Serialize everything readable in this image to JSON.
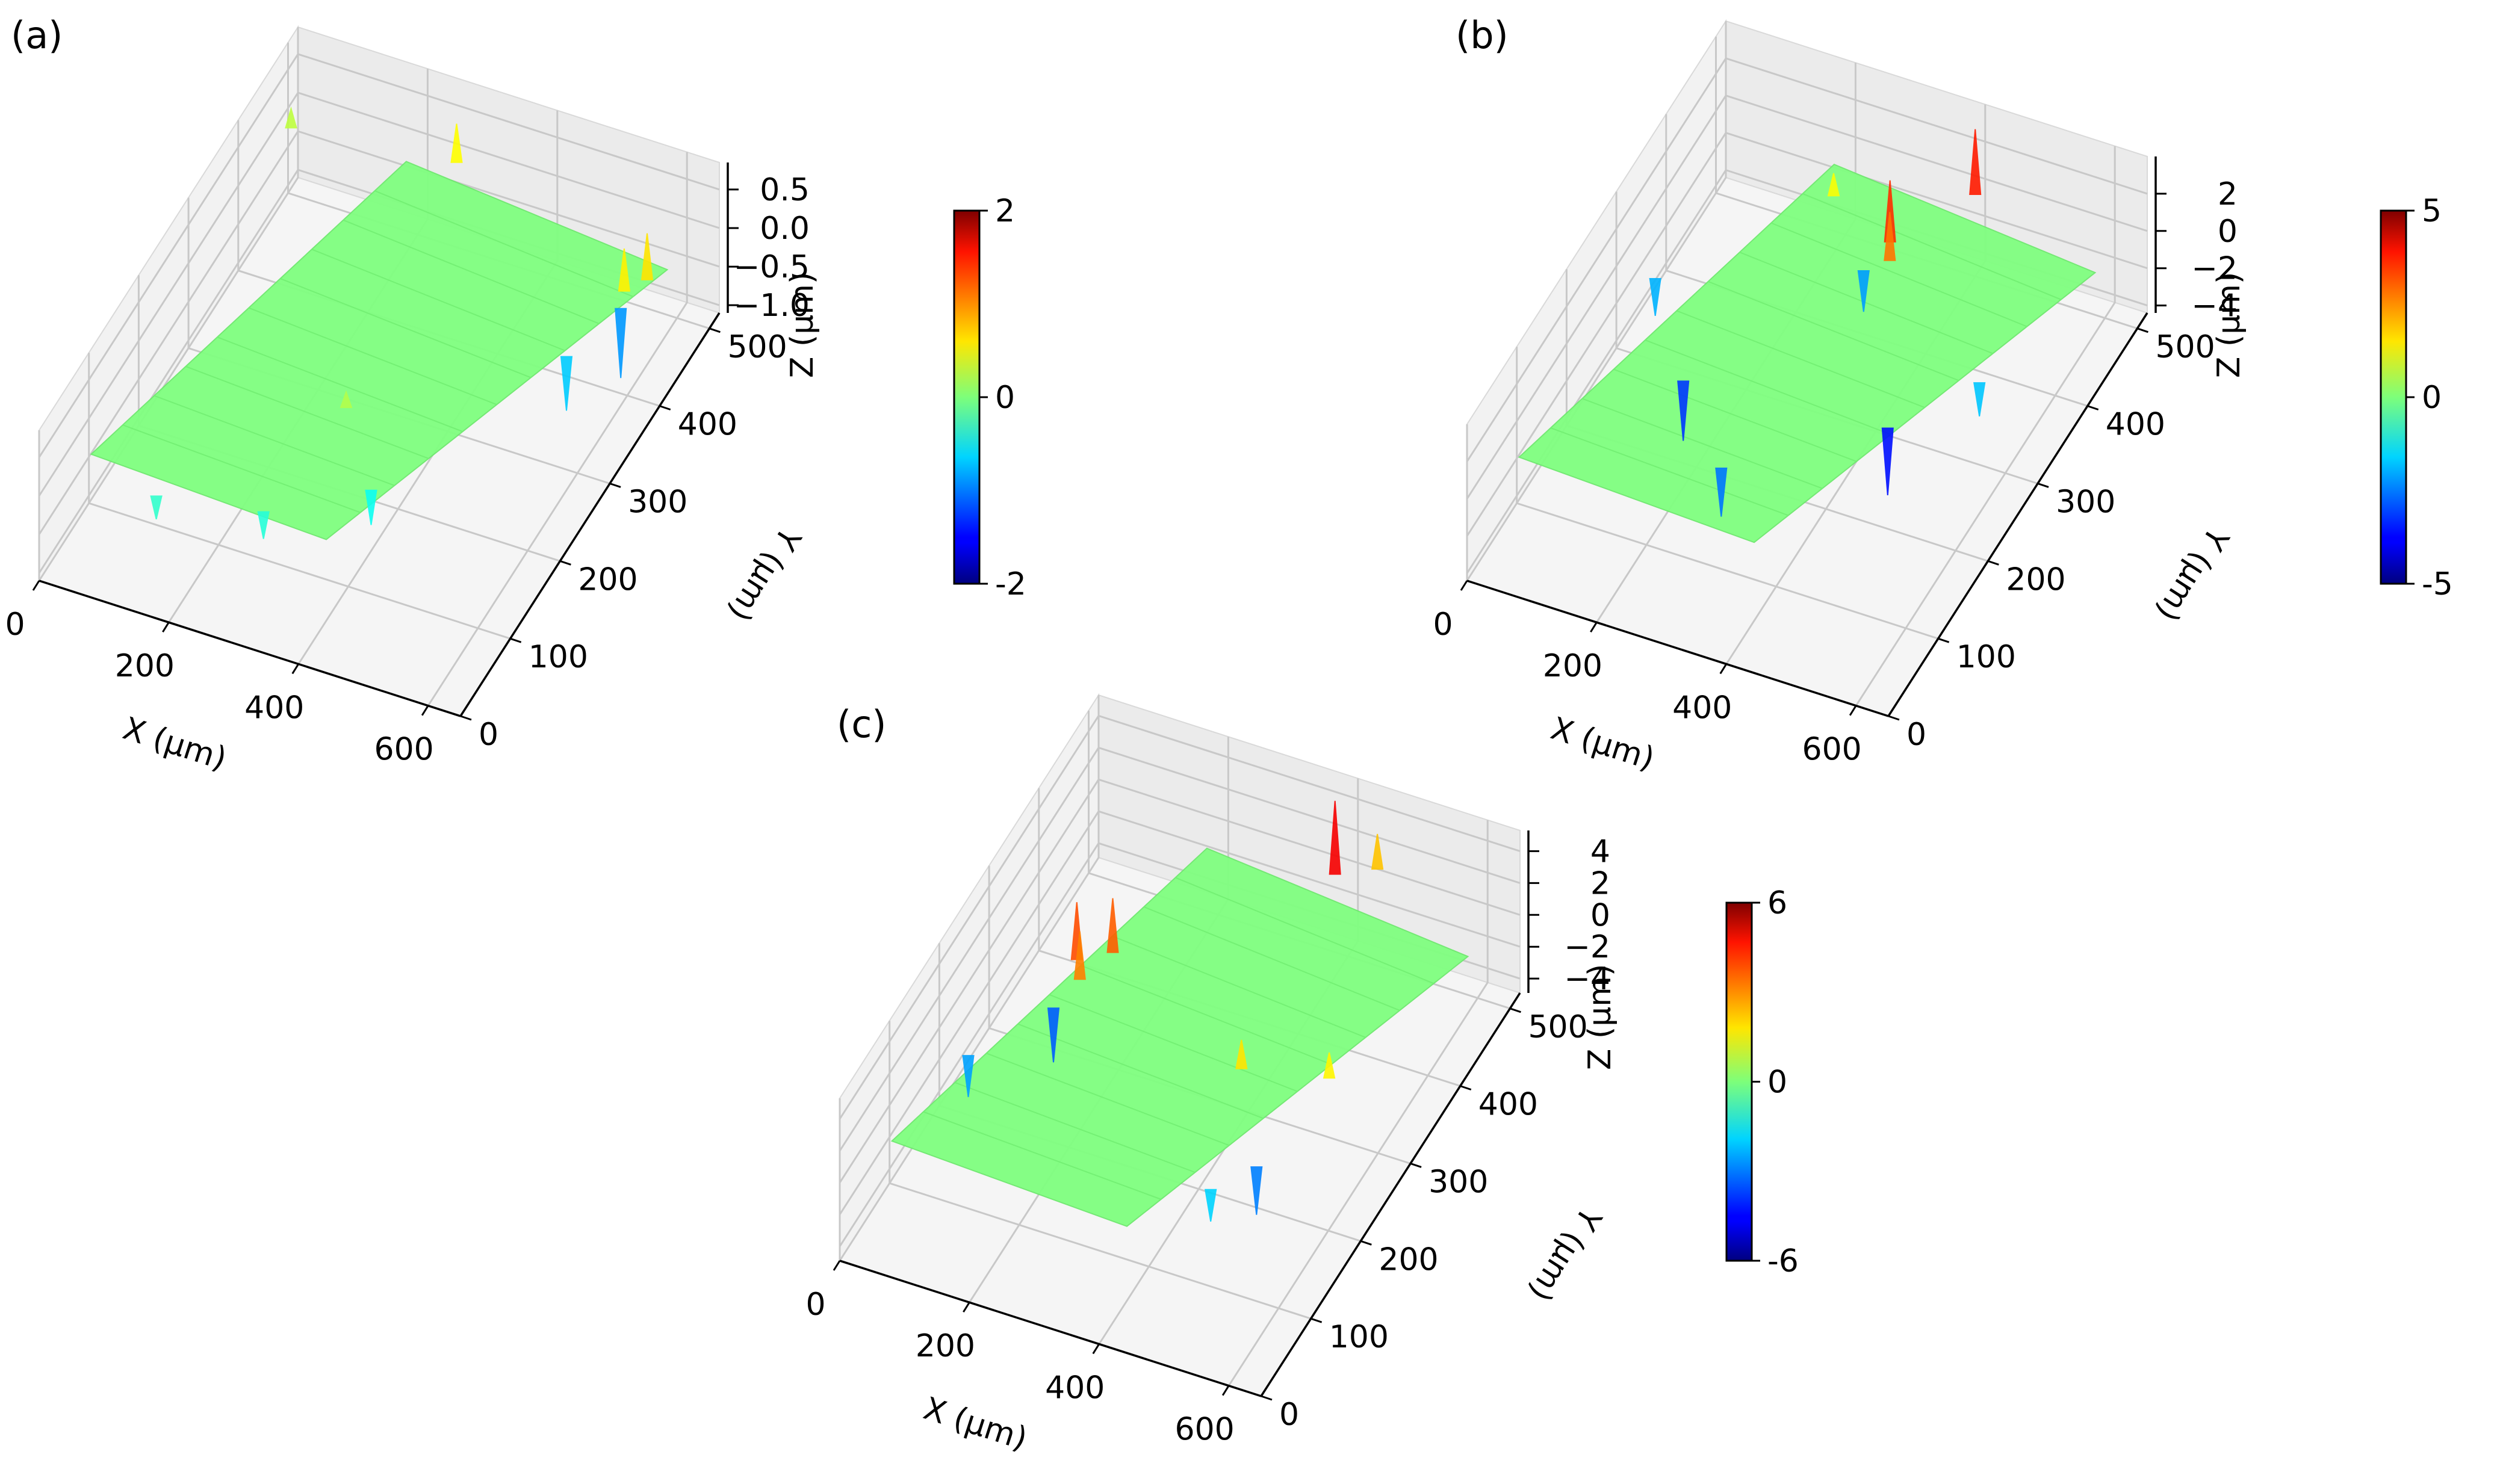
{
  "chart_data": [
    {
      "type": "surface3d",
      "panel_label": "(a)",
      "xlabel": "X (μm)",
      "ylabel": "Y (μm)",
      "zlabel": "Z (μm)",
      "x_ticks": [
        "0",
        "200",
        "400",
        "600"
      ],
      "y_ticks": [
        "0",
        "100",
        "200",
        "300",
        "400",
        "500"
      ],
      "z_ticks": [
        "−1.0",
        "−0.5",
        "0.0",
        "0.5"
      ],
      "xlim": [
        0,
        650
      ],
      "ylim": [
        0,
        520
      ],
      "zlim": [
        -1.1,
        0.85
      ],
      "colorbar": {
        "min": -2,
        "max": 2,
        "ticks": [
          "2",
          "0",
          "-2"
        ]
      },
      "surface": {
        "base_z": 0.0,
        "color": "#80ff80"
      },
      "spikes": [
        {
          "x": 580,
          "y": 420,
          "z": 0.55
        },
        {
          "x": 600,
          "y": 440,
          "z": 0.6
        },
        {
          "x": 590,
          "y": 400,
          "z": -0.9
        },
        {
          "x": 560,
          "y": 330,
          "z": -0.7
        },
        {
          "x": 260,
          "y": 500,
          "z": 0.5
        },
        {
          "x": 20,
          "y": 480,
          "z": 0.25
        },
        {
          "x": 150,
          "y": 40,
          "z": -0.3
        },
        {
          "x": 300,
          "y": 60,
          "z": -0.35
        },
        {
          "x": 420,
          "y": 120,
          "z": -0.45
        },
        {
          "x": 320,
          "y": 200,
          "z": 0.2
        }
      ]
    },
    {
      "type": "surface3d",
      "panel_label": "(b)",
      "xlabel": "X (μm)",
      "ylabel": "Y (μm)",
      "zlabel": "Z (μm)",
      "x_ticks": [
        "0",
        "200",
        "400",
        "600"
      ],
      "y_ticks": [
        "0",
        "100",
        "200",
        "300",
        "400",
        "500"
      ],
      "z_ticks": [
        "−4",
        "−2",
        "0",
        "2"
      ],
      "xlim": [
        0,
        650
      ],
      "ylim": [
        0,
        520
      ],
      "zlim": [
        -4.4,
        4.0
      ],
      "colorbar": {
        "min": -5,
        "max": 5,
        "ticks": [
          "5",
          "0",
          "-5"
        ]
      },
      "surface": {
        "base_z": 0.0,
        "color": "#80ff80"
      },
      "spikes": [
        {
          "x": 330,
          "y": 420,
          "z": 3.3
        },
        {
          "x": 345,
          "y": 400,
          "z": 2.6
        },
        {
          "x": 320,
          "y": 380,
          "z": -2.2
        },
        {
          "x": 400,
          "y": 500,
          "z": 3.5
        },
        {
          "x": 180,
          "y": 200,
          "z": -3.2
        },
        {
          "x": 480,
          "y": 220,
          "z": -3.6
        },
        {
          "x": 300,
          "y": 120,
          "z": -2.6
        },
        {
          "x": 560,
          "y": 300,
          "z": -1.8
        },
        {
          "x": 60,
          "y": 300,
          "z": -2.0
        },
        {
          "x": 220,
          "y": 450,
          "z": 1.2
        }
      ]
    },
    {
      "type": "surface3d",
      "panel_label": "(c)",
      "xlabel": "X (μm)",
      "ylabel": "Y (μm)",
      "zlabel": "Z (μm)",
      "x_ticks": [
        "0",
        "200",
        "400",
        "600"
      ],
      "y_ticks": [
        "0",
        "100",
        "200",
        "300",
        "400",
        "500"
      ],
      "z_ticks": [
        "−4",
        "−2",
        "0",
        "2",
        "4"
      ],
      "xlim": [
        0,
        650
      ],
      "ylim": [
        0,
        520
      ],
      "zlim": [
        -4.9,
        5.3
      ],
      "colorbar": {
        "min": -6,
        "max": 6,
        "ticks": [
          "6",
          "0",
          "-6"
        ]
      },
      "surface": {
        "base_z": 0.0,
        "color": "#80ff80"
      },
      "spikes": [
        {
          "x": 120,
          "y": 320,
          "z": 3.6
        },
        {
          "x": 140,
          "y": 300,
          "z": 3.0
        },
        {
          "x": 160,
          "y": 340,
          "z": 3.4
        },
        {
          "x": 130,
          "y": 260,
          "z": -3.4
        },
        {
          "x": 380,
          "y": 500,
          "z": 4.6
        },
        {
          "x": 430,
          "y": 520,
          "z": 2.2
        },
        {
          "x": 420,
          "y": 260,
          "z": 1.8
        },
        {
          "x": 520,
          "y": 160,
          "z": -3.0
        },
        {
          "x": 540,
          "y": 280,
          "z": 1.6
        },
        {
          "x": 480,
          "y": 120,
          "z": -2.0
        },
        {
          "x": 60,
          "y": 180,
          "z": -2.6
        }
      ]
    }
  ]
}
